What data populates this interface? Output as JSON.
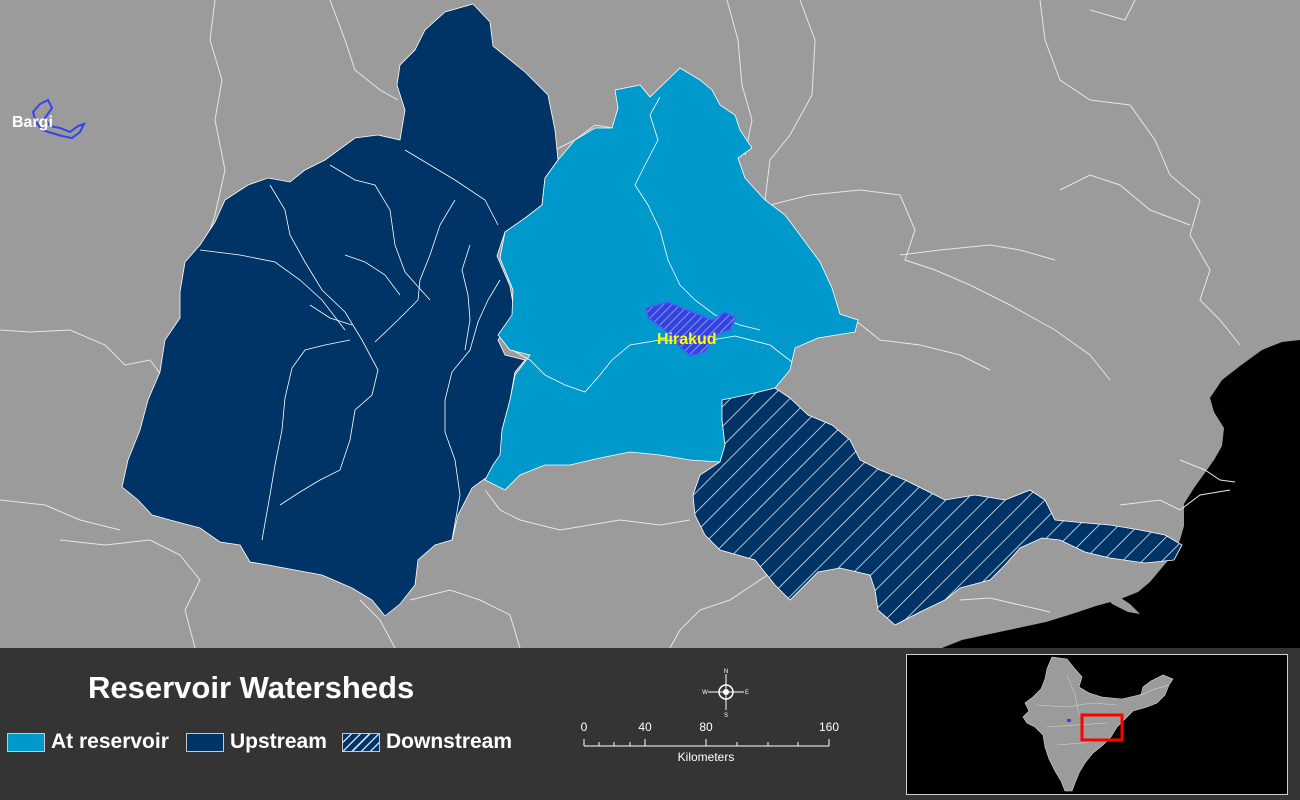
{
  "title": "Reservoir Watersheds",
  "reservoirs": [
    {
      "name": "Bargi",
      "color": "#ffffff"
    },
    {
      "name": "Hirakud",
      "color": "#ffff00"
    }
  ],
  "legend": {
    "items": [
      {
        "label": "At reservoir",
        "color": "#0099cc",
        "pattern": "solid"
      },
      {
        "label": "Upstream",
        "color": "#003366",
        "pattern": "solid"
      },
      {
        "label": "Downstream",
        "color": "#003366",
        "pattern": "hatched"
      }
    ]
  },
  "scale_bar": {
    "labels": [
      "0",
      "40",
      "80",
      "160"
    ],
    "unit": "Kilometers"
  },
  "north_arrow": {
    "n": "N",
    "s": "S",
    "e": "E",
    "w": "W"
  },
  "colors": {
    "land": "#9b9b9b",
    "sea": "#000000",
    "boundaries": "#e6e6e6",
    "panel": "#343434",
    "inset_highlight": "#ff0000"
  }
}
